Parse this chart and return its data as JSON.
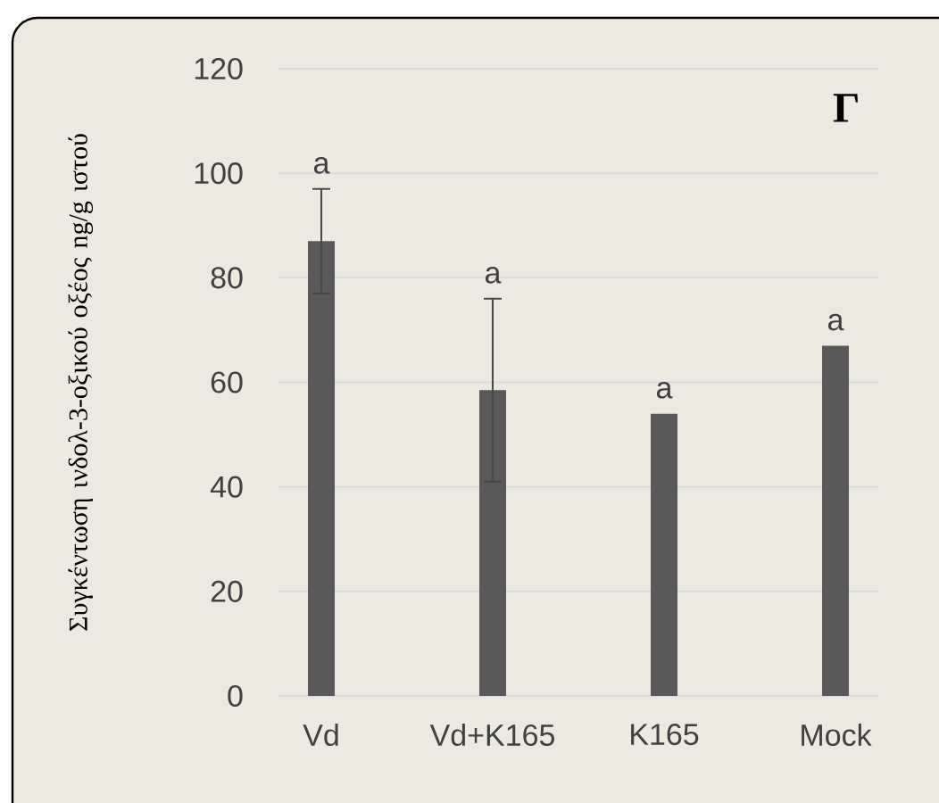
{
  "chart_data": {
    "type": "bar",
    "title": "Γ",
    "ylabel": "Συγκέντωση ινδολ-3-οξικού οξέος ng/g ιστού",
    "categories": [
      "Vd",
      "Vd+K165",
      "K165",
      "Mock"
    ],
    "values": [
      87,
      58.5,
      54,
      67
    ],
    "errors": [
      10,
      17.5,
      null,
      null
    ],
    "color": "#595959",
    "ylim": [
      0,
      120
    ],
    "yticks": [
      0,
      20,
      40,
      60,
      80,
      100,
      120
    ],
    "grid": "y",
    "annotations": [
      "a",
      "a",
      "a",
      "a"
    ]
  }
}
